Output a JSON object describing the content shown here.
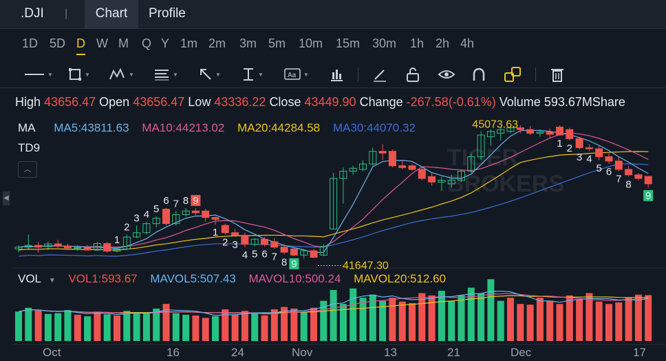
{
  "header": {
    "symbol": ".DJI",
    "separator": "|",
    "tabs": [
      {
        "label": "Chart",
        "active": true
      },
      {
        "label": "Profile",
        "active": false
      }
    ]
  },
  "periods": [
    "1D",
    "5D",
    "D",
    "W",
    "M",
    "Q",
    "Y",
    "1m",
    "2m",
    "3m",
    "5m",
    "10m",
    "15m",
    "30m",
    "1h",
    "2h",
    "4h"
  ],
  "active_period": "D",
  "toolbar": {
    "tools": [
      "line-tool-icon",
      "rectangle-tool-icon",
      "pattern-tool-icon",
      "fibonacci-tool-icon",
      "arrow-tool-icon",
      "measure-tool-icon",
      "text-tool-icon",
      "indicator-tool-icon",
      "pencil-icon",
      "unlock-icon",
      "eye-icon",
      "magnet-icon",
      "link-icon",
      "trash-icon"
    ]
  },
  "ohlc": {
    "high_label": "High",
    "high": "43656.47",
    "open_label": "Open",
    "open": "43656.47",
    "low_label": "Low",
    "low": "43336.22",
    "close_label": "Close",
    "close": "43449.90",
    "change_label": "Change",
    "change": "-267.58(-0.61%)",
    "volume_label": "Volume",
    "volume": "593.67MShare"
  },
  "indicators": {
    "ma_label": "MA",
    "ma5": "MA5:43811.63",
    "ma10": "MA10:44213.02",
    "ma20": "MA20:44284.58",
    "ma30": "MA30:44070.32",
    "td_label": "TD9",
    "collapse_symbol": "︿",
    "high_marker": "45073.63",
    "low_marker": "41647.30",
    "vol_label": "VOL",
    "vol1": "VOL1:593.67",
    "mavol5": "MAVOL5:507.43",
    "mavol10": "MAVOL10:500.24",
    "mavol20": "MAVOL20:512.60"
  },
  "colors": {
    "up": "#26c281",
    "down": "#ef5350",
    "ma5": "#6ab4f0",
    "ma10": "#e0579b",
    "ma20": "#f0c419",
    "ma30": "#3d6fd8",
    "accent": "#f0c419",
    "background": "#131922"
  },
  "watermark": [
    "TIGER",
    "BROKERS"
  ],
  "xaxis": [
    "Oct",
    "16",
    "24",
    "Nov",
    "13",
    "21",
    "Dec",
    "17"
  ],
  "chart_data": {
    "type": "candlestick",
    "candles": [
      {
        "o": 41650,
        "h": 41750,
        "l": 41560,
        "c": 41700
      },
      {
        "o": 41700,
        "h": 42050,
        "l": 41650,
        "c": 41750
      },
      {
        "o": 41750,
        "h": 41850,
        "l": 41550,
        "c": 41700
      },
      {
        "o": 41720,
        "h": 41850,
        "l": 41620,
        "c": 41790
      },
      {
        "o": 41790,
        "h": 41900,
        "l": 41650,
        "c": 41730
      },
      {
        "o": 41730,
        "h": 41800,
        "l": 41620,
        "c": 41680
      },
      {
        "o": 41680,
        "h": 41760,
        "l": 41600,
        "c": 41690
      },
      {
        "o": 41690,
        "h": 41760,
        "l": 41600,
        "c": 41620
      },
      {
        "o": 41620,
        "h": 41850,
        "l": 41600,
        "c": 41800
      },
      {
        "o": 41800,
        "h": 41850,
        "l": 41550,
        "c": 41590
      },
      {
        "o": 41590,
        "h": 41700,
        "l": 41560,
        "c": 41650
      },
      {
        "o": 41650,
        "h": 42050,
        "l": 41620,
        "c": 41980
      },
      {
        "o": 41980,
        "h": 42300,
        "l": 41950,
        "c": 42100
      },
      {
        "o": 42100,
        "h": 42400,
        "l": 42050,
        "c": 42350
      },
      {
        "o": 42350,
        "h": 42550,
        "l": 42250,
        "c": 42500
      },
      {
        "o": 42750,
        "h": 42780,
        "l": 42300,
        "c": 42350
      },
      {
        "o": 42350,
        "h": 42700,
        "l": 42300,
        "c": 42600
      },
      {
        "o": 42600,
        "h": 42780,
        "l": 42550,
        "c": 42700
      },
      {
        "o": 42700,
        "h": 42780,
        "l": 42580,
        "c": 42650
      },
      {
        "o": 42700,
        "h": 42760,
        "l": 42400,
        "c": 42520
      },
      {
        "o": 42520,
        "h": 42550,
        "l": 42320,
        "c": 42470
      },
      {
        "o": 42300,
        "h": 42350,
        "l": 42050,
        "c": 42100
      },
      {
        "o": 42100,
        "h": 42200,
        "l": 41980,
        "c": 42030
      },
      {
        "o": 42030,
        "h": 42100,
        "l": 41700,
        "c": 41780
      },
      {
        "o": 41780,
        "h": 41950,
        "l": 41720,
        "c": 41920
      },
      {
        "o": 41920,
        "h": 41980,
        "l": 41720,
        "c": 41780
      },
      {
        "o": 41850,
        "h": 41950,
        "l": 41650,
        "c": 41700
      },
      {
        "o": 41700,
        "h": 41780,
        "l": 41500,
        "c": 41560
      },
      {
        "o": 41650,
        "h": 41700,
        "l": 41450,
        "c": 41480
      },
      {
        "o": 41480,
        "h": 41650,
        "l": 41380,
        "c": 41600
      },
      {
        "o": 41600,
        "h": 41650,
        "l": 41400,
        "c": 41420
      },
      {
        "o": 41480,
        "h": 41780,
        "l": 41450,
        "c": 41720
      },
      {
        "o": 42200,
        "h": 43750,
        "l": 42200,
        "c": 43600
      },
      {
        "o": 43600,
        "h": 43900,
        "l": 42900,
        "c": 43800
      },
      {
        "o": 43800,
        "h": 43950,
        "l": 43700,
        "c": 43880
      },
      {
        "o": 43850,
        "h": 44100,
        "l": 43800,
        "c": 44000
      },
      {
        "o": 44000,
        "h": 44450,
        "l": 43950,
        "c": 44350
      },
      {
        "o": 44350,
        "h": 44550,
        "l": 44100,
        "c": 44300
      },
      {
        "o": 44350,
        "h": 44400,
        "l": 43900,
        "c": 43950
      },
      {
        "o": 43950,
        "h": 44100,
        "l": 43850,
        "c": 43900
      },
      {
        "o": 43950,
        "h": 44000,
        "l": 43800,
        "c": 43850
      },
      {
        "o": 43850,
        "h": 43900,
        "l": 43550,
        "c": 43600
      },
      {
        "o": 43650,
        "h": 43750,
        "l": 43400,
        "c": 43500
      },
      {
        "o": 43500,
        "h": 43650,
        "l": 43250,
        "c": 43550
      },
      {
        "o": 43450,
        "h": 43700,
        "l": 43350,
        "c": 43550
      },
      {
        "o": 43550,
        "h": 43850,
        "l": 43500,
        "c": 43800
      },
      {
        "o": 43800,
        "h": 44300,
        "l": 43750,
        "c": 44200
      },
      {
        "o": 44200,
        "h": 44900,
        "l": 44100,
        "c": 44800
      },
      {
        "o": 44750,
        "h": 44950,
        "l": 44500,
        "c": 44900
      },
      {
        "o": 44850,
        "h": 45000,
        "l": 44650,
        "c": 44950
      },
      {
        "o": 44900,
        "h": 45050,
        "l": 44850,
        "c": 45000
      },
      {
        "o": 45000,
        "h": 45073,
        "l": 44850,
        "c": 44950
      },
      {
        "o": 44950,
        "h": 45050,
        "l": 44800,
        "c": 44850
      },
      {
        "o": 44850,
        "h": 44950,
        "l": 44750,
        "c": 44880
      },
      {
        "o": 44880,
        "h": 44980,
        "l": 44700,
        "c": 44820
      },
      {
        "o": 45020,
        "h": 45070,
        "l": 44780,
        "c": 44800
      },
      {
        "o": 44950,
        "h": 45000,
        "l": 44650,
        "c": 44700
      },
      {
        "o": 44700,
        "h": 44750,
        "l": 44400,
        "c": 44450
      },
      {
        "o": 44450,
        "h": 44550,
        "l": 44350,
        "c": 44420
      },
      {
        "o": 44420,
        "h": 44500,
        "l": 44100,
        "c": 44200
      },
      {
        "o": 44200,
        "h": 44300,
        "l": 44000,
        "c": 44080
      },
      {
        "o": 44080,
        "h": 44200,
        "l": 43800,
        "c": 43850
      },
      {
        "o": 43850,
        "h": 43950,
        "l": 43650,
        "c": 43700
      },
      {
        "o": 43700,
        "h": 43750,
        "l": 43550,
        "c": 43600
      },
      {
        "o": 43656,
        "h": 43656,
        "l": 43336,
        "c": 43450
      }
    ],
    "td_labels": [
      {
        "i": 10,
        "t": "1",
        "pos": "above"
      },
      {
        "i": 11,
        "t": "2",
        "pos": "above"
      },
      {
        "i": 12,
        "t": "3",
        "pos": "above"
      },
      {
        "i": 13,
        "t": "4",
        "pos": "above"
      },
      {
        "i": 14,
        "t": "5",
        "pos": "above"
      },
      {
        "i": 15,
        "t": "6",
        "pos": "above"
      },
      {
        "i": 16,
        "t": "7",
        "pos": "above"
      },
      {
        "i": 17,
        "t": "8",
        "pos": "above"
      },
      {
        "i": 18,
        "t": "9",
        "pos": "above",
        "box": true
      },
      {
        "i": 20,
        "t": "1",
        "pos": "below"
      },
      {
        "i": 21,
        "t": "2",
        "pos": "below"
      },
      {
        "i": 22,
        "t": "3",
        "pos": "below"
      },
      {
        "i": 23,
        "t": "4",
        "pos": "below"
      },
      {
        "i": 24,
        "t": "5",
        "pos": "below"
      },
      {
        "i": 25,
        "t": "6",
        "pos": "below"
      },
      {
        "i": 26,
        "t": "7",
        "pos": "below"
      },
      {
        "i": 27,
        "t": "8",
        "pos": "below"
      },
      {
        "i": 28,
        "t": "9",
        "pos": "below",
        "box": true
      },
      {
        "i": 55,
        "t": "1",
        "pos": "below"
      },
      {
        "i": 56,
        "t": "2",
        "pos": "below"
      },
      {
        "i": 57,
        "t": "3",
        "pos": "below"
      },
      {
        "i": 58,
        "t": "4",
        "pos": "below"
      },
      {
        "i": 59,
        "t": "5",
        "pos": "below"
      },
      {
        "i": 60,
        "t": "6",
        "pos": "below"
      },
      {
        "i": 61,
        "t": "7",
        "pos": "below"
      },
      {
        "i": 62,
        "t": "8",
        "pos": "below"
      },
      {
        "i": 64,
        "t": "9",
        "pos": "below",
        "box": true
      }
    ],
    "volumes": [
      {
        "v": 380,
        "up": true
      },
      {
        "v": 430,
        "up": true
      },
      {
        "v": 395,
        "up": false
      },
      {
        "v": 350,
        "up": true
      },
      {
        "v": 360,
        "up": true
      },
      {
        "v": 400,
        "up": true
      },
      {
        "v": 340,
        "up": false
      },
      {
        "v": 320,
        "up": true
      },
      {
        "v": 380,
        "up": false
      },
      {
        "v": 345,
        "up": true
      },
      {
        "v": 330,
        "up": false
      },
      {
        "v": 390,
        "up": true
      },
      {
        "v": 370,
        "up": true
      },
      {
        "v": 360,
        "up": true
      },
      {
        "v": 420,
        "up": true
      },
      {
        "v": 480,
        "up": false
      },
      {
        "v": 360,
        "up": true
      },
      {
        "v": 340,
        "up": true
      },
      {
        "v": 330,
        "up": false
      },
      {
        "v": 300,
        "up": false
      },
      {
        "v": 320,
        "up": true
      },
      {
        "v": 410,
        "up": false
      },
      {
        "v": 340,
        "up": false
      },
      {
        "v": 390,
        "up": false
      },
      {
        "v": 360,
        "up": true
      },
      {
        "v": 330,
        "up": false
      },
      {
        "v": 410,
        "up": false
      },
      {
        "v": 440,
        "up": false
      },
      {
        "v": 420,
        "up": false
      },
      {
        "v": 370,
        "up": true
      },
      {
        "v": 430,
        "up": false
      },
      {
        "v": 520,
        "up": true
      },
      {
        "v": 660,
        "up": true
      },
      {
        "v": 480,
        "up": true
      },
      {
        "v": 680,
        "up": true
      },
      {
        "v": 560,
        "up": true
      },
      {
        "v": 600,
        "up": true
      },
      {
        "v": 520,
        "up": true
      },
      {
        "v": 560,
        "up": false
      },
      {
        "v": 510,
        "up": false
      },
      {
        "v": 490,
        "up": false
      },
      {
        "v": 620,
        "up": false
      },
      {
        "v": 590,
        "up": false
      },
      {
        "v": 650,
        "up": true
      },
      {
        "v": 520,
        "up": true
      },
      {
        "v": 590,
        "up": true
      },
      {
        "v": 690,
        "up": true
      },
      {
        "v": 620,
        "up": true
      },
      {
        "v": 800,
        "up": true
      },
      {
        "v": 520,
        "up": true
      },
      {
        "v": 560,
        "up": false
      },
      {
        "v": 480,
        "up": false
      },
      {
        "v": 470,
        "up": false
      },
      {
        "v": 560,
        "up": false
      },
      {
        "v": 520,
        "up": false
      },
      {
        "v": 480,
        "up": false
      },
      {
        "v": 590,
        "up": false
      },
      {
        "v": 540,
        "up": false
      },
      {
        "v": 620,
        "up": false
      },
      {
        "v": 510,
        "up": false
      },
      {
        "v": 480,
        "up": false
      },
      {
        "v": 500,
        "up": false
      },
      {
        "v": 560,
        "up": false
      },
      {
        "v": 600,
        "up": false
      },
      {
        "v": 594,
        "up": false
      }
    ]
  }
}
